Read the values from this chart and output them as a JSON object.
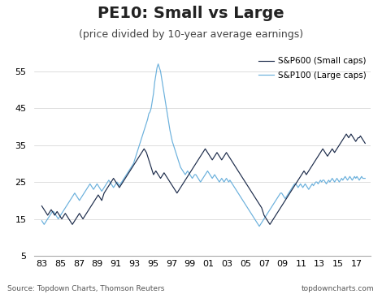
{
  "title": "PE10: Small vs Large",
  "subtitle": "(price divided by 10-year average earnings)",
  "source_left": "Source: Topdown Charts, Thomson Reuters",
  "source_right": "topdowncharts.com",
  "legend": [
    "S&P600 (Small caps)",
    "S&P100 (Large caps)"
  ],
  "color_small": "#1c2b4a",
  "color_large": "#6ab0dc",
  "ylim": [
    5,
    60
  ],
  "yticks": [
    5,
    15,
    25,
    35,
    45,
    55
  ],
  "xtick_labels": [
    "83",
    "85",
    "87",
    "89",
    "91",
    "93",
    "95",
    "97",
    "99",
    "01",
    "03",
    "05",
    "07",
    "09",
    "11",
    "13",
    "15",
    "17"
  ],
  "background_color": "#ffffff",
  "title_fontsize": 14,
  "subtitle_fontsize": 9,
  "small_caps": [
    18.5,
    18.0,
    17.5,
    17.0,
    16.5,
    16.0,
    16.5,
    17.0,
    17.5,
    17.0,
    16.5,
    16.0,
    16.5,
    17.0,
    16.5,
    16.0,
    15.5,
    15.0,
    15.5,
    16.0,
    16.5,
    16.0,
    15.5,
    15.0,
    14.5,
    14.0,
    13.5,
    14.0,
    14.5,
    15.0,
    15.5,
    16.0,
    16.5,
    16.0,
    15.5,
    15.0,
    15.5,
    16.0,
    16.5,
    17.0,
    17.5,
    18.0,
    18.5,
    19.0,
    19.5,
    20.0,
    20.5,
    21.0,
    21.5,
    21.0,
    20.5,
    20.0,
    21.0,
    22.0,
    22.5,
    23.0,
    23.5,
    24.0,
    24.5,
    25.0,
    25.5,
    26.0,
    25.5,
    25.0,
    24.5,
    24.0,
    23.5,
    24.0,
    24.5,
    25.0,
    25.5,
    26.0,
    26.5,
    27.0,
    27.5,
    28.0,
    28.5,
    29.0,
    29.5,
    30.0,
    30.5,
    31.0,
    31.5,
    32.0,
    32.5,
    33.0,
    33.5,
    34.0,
    33.5,
    33.0,
    32.0,
    31.0,
    30.0,
    29.0,
    28.0,
    27.0,
    27.5,
    28.0,
    27.5,
    27.0,
    26.5,
    26.0,
    26.5,
    27.0,
    27.5,
    27.0,
    26.5,
    26.0,
    25.5,
    25.0,
    24.5,
    24.0,
    23.5,
    23.0,
    22.5,
    22.0,
    22.5,
    23.0,
    23.5,
    24.0,
    24.5,
    25.0,
    25.5,
    26.0,
    26.5,
    27.0,
    27.5,
    28.0,
    28.5,
    29.0,
    29.5,
    30.0,
    30.5,
    31.0,
    31.5,
    32.0,
    32.5,
    33.0,
    33.5,
    34.0,
    33.5,
    33.0,
    32.5,
    32.0,
    31.5,
    31.0,
    31.5,
    32.0,
    32.5,
    33.0,
    32.5,
    32.0,
    31.5,
    31.0,
    31.5,
    32.0,
    32.5,
    33.0,
    32.5,
    32.0,
    31.5,
    31.0,
    30.5,
    30.0,
    29.5,
    29.0,
    28.5,
    28.0,
    27.5,
    27.0,
    26.5,
    26.0,
    25.5,
    25.0,
    24.5,
    24.0,
    23.5,
    23.0,
    22.5,
    22.0,
    21.5,
    21.0,
    20.5,
    20.0,
    19.5,
    19.0,
    18.5,
    18.0,
    17.0,
    16.0,
    15.5,
    15.0,
    14.5,
    14.0,
    13.5,
    14.0,
    14.5,
    15.0,
    15.5,
    16.0,
    16.5,
    17.0,
    17.5,
    18.0,
    18.5,
    19.0,
    19.5,
    20.0,
    20.5,
    21.0,
    21.5,
    22.0,
    22.5,
    23.0,
    23.5,
    24.0,
    24.5,
    25.0,
    25.5,
    26.0,
    26.5,
    27.0,
    27.5,
    28.0,
    27.5,
    27.0,
    27.5,
    28.0,
    28.5,
    29.0,
    29.5,
    30.0,
    30.5,
    31.0,
    31.5,
    32.0,
    32.5,
    33.0,
    33.5,
    34.0,
    33.5,
    33.0,
    32.5,
    32.0,
    32.5,
    33.0,
    33.5,
    34.0,
    33.5,
    33.0,
    33.5,
    34.0,
    34.5,
    35.0,
    35.5,
    36.0,
    36.5,
    37.0,
    37.5,
    38.0,
    37.5,
    37.0,
    37.5,
    38.0,
    37.5,
    37.0,
    36.5,
    36.0,
    36.5,
    37.0,
    37.0,
    37.5,
    37.0,
    36.5,
    36.0,
    35.5
  ],
  "large_caps": [
    14.5,
    14.0,
    13.5,
    14.0,
    14.5,
    15.0,
    15.5,
    16.0,
    16.5,
    17.0,
    17.0,
    16.5,
    16.0,
    15.5,
    15.0,
    15.5,
    16.0,
    16.5,
    17.0,
    17.5,
    18.0,
    18.5,
    19.0,
    19.5,
    20.0,
    20.5,
    21.0,
    21.5,
    22.0,
    21.5,
    21.0,
    20.5,
    20.0,
    20.5,
    21.0,
    21.5,
    22.0,
    22.5,
    23.0,
    23.5,
    24.0,
    24.5,
    24.0,
    23.5,
    23.0,
    23.5,
    24.0,
    24.5,
    24.0,
    23.5,
    23.0,
    22.5,
    23.0,
    23.5,
    24.0,
    24.5,
    25.0,
    25.5,
    25.0,
    24.5,
    24.0,
    23.5,
    24.0,
    24.5,
    25.0,
    24.5,
    24.0,
    24.5,
    25.0,
    25.5,
    26.0,
    26.5,
    27.0,
    27.5,
    28.0,
    28.5,
    29.0,
    29.5,
    30.0,
    31.0,
    32.0,
    33.0,
    34.0,
    35.0,
    36.0,
    37.0,
    38.0,
    39.0,
    40.0,
    41.0,
    42.0,
    43.5,
    44.0,
    45.0,
    47.0,
    49.0,
    52.0,
    54.0,
    56.0,
    57.0,
    56.0,
    55.0,
    53.0,
    51.0,
    49.0,
    47.0,
    45.0,
    43.0,
    41.0,
    39.0,
    37.5,
    36.0,
    35.0,
    34.0,
    33.0,
    32.0,
    31.0,
    30.0,
    29.0,
    28.5,
    28.0,
    27.5,
    27.0,
    27.5,
    28.0,
    27.5,
    27.0,
    26.5,
    26.0,
    26.5,
    27.0,
    27.0,
    26.5,
    26.0,
    25.5,
    25.0,
    25.5,
    26.0,
    26.5,
    27.0,
    27.5,
    28.0,
    27.5,
    27.0,
    26.5,
    26.0,
    26.5,
    27.0,
    26.5,
    26.0,
    25.5,
    25.0,
    25.5,
    26.0,
    25.5,
    25.0,
    25.5,
    26.0,
    25.5,
    25.0,
    25.5,
    25.0,
    24.5,
    24.0,
    23.5,
    23.0,
    22.5,
    22.0,
    21.5,
    21.0,
    20.5,
    20.0,
    19.5,
    19.0,
    18.5,
    18.0,
    17.5,
    17.0,
    16.5,
    16.0,
    15.5,
    15.0,
    14.5,
    14.0,
    13.5,
    13.0,
    13.5,
    14.0,
    14.5,
    15.0,
    15.5,
    16.0,
    16.5,
    17.0,
    17.5,
    18.0,
    18.5,
    19.0,
    19.5,
    20.0,
    20.5,
    21.0,
    21.5,
    22.0,
    22.0,
    21.5,
    21.0,
    20.5,
    21.0,
    21.5,
    22.0,
    22.5,
    23.0,
    23.5,
    24.0,
    24.5,
    24.5,
    24.0,
    23.5,
    24.0,
    24.5,
    24.0,
    23.5,
    24.0,
    24.5,
    24.0,
    23.5,
    23.0,
    23.5,
    24.0,
    24.5,
    24.0,
    24.5,
    25.0,
    25.0,
    24.5,
    25.0,
    25.5,
    25.0,
    25.5,
    25.5,
    25.0,
    24.5,
    25.0,
    25.5,
    25.0,
    25.5,
    26.0,
    25.5,
    25.0,
    25.5,
    26.0,
    25.5,
    25.0,
    25.5,
    26.0,
    25.5,
    26.0,
    26.5,
    26.0,
    25.5,
    26.0,
    26.5,
    26.0,
    25.5,
    26.0,
    26.5,
    26.0,
    26.5,
    26.0,
    25.5,
    26.0,
    26.5,
    26.0,
    26.0,
    26.0
  ]
}
